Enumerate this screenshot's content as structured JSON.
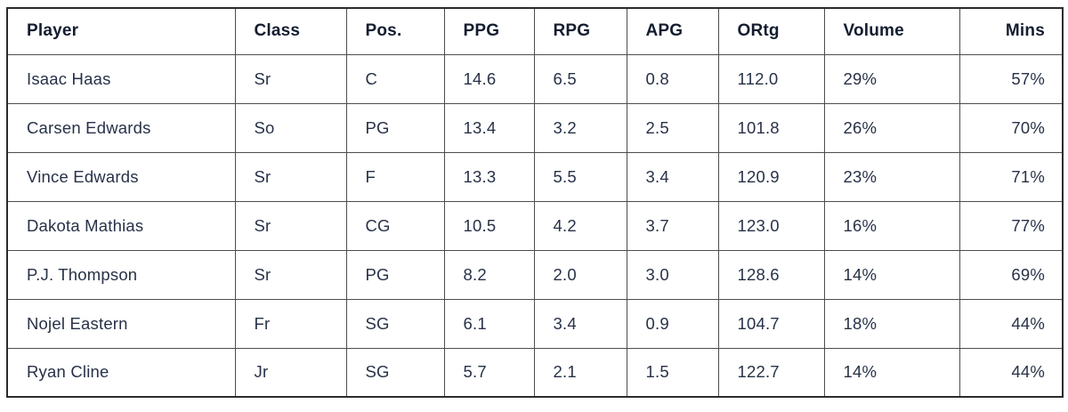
{
  "chart_data": {
    "type": "table",
    "title": "",
    "columns": [
      {
        "label": "Player",
        "align": "left"
      },
      {
        "label": "Class",
        "align": "left"
      },
      {
        "label": "Pos.",
        "align": "left"
      },
      {
        "label": "PPG",
        "align": "left"
      },
      {
        "label": "RPG",
        "align": "left"
      },
      {
        "label": "APG",
        "align": "left"
      },
      {
        "label": "ORtg",
        "align": "left"
      },
      {
        "label": "Volume",
        "align": "left"
      },
      {
        "label": "Mins",
        "align": "right"
      }
    ],
    "rows": [
      [
        "Isaac Haas",
        "Sr",
        "C",
        "14.6",
        "6.5",
        "0.8",
        "112.0",
        "29%",
        "57%"
      ],
      [
        "Carsen Edwards",
        "So",
        "PG",
        "13.4",
        "3.2",
        "2.5",
        "101.8",
        "26%",
        "70%"
      ],
      [
        "Vince Edwards",
        "Sr",
        "F",
        "13.3",
        "5.5",
        "3.4",
        "120.9",
        "23%",
        "71%"
      ],
      [
        "Dakota Mathias",
        "Sr",
        "CG",
        "10.5",
        "4.2",
        "3.7",
        "123.0",
        "16%",
        "77%"
      ],
      [
        "P.J. Thompson",
        "Sr",
        "PG",
        "8.2",
        "2.0",
        "3.0",
        "128.6",
        "14%",
        "69%"
      ],
      [
        "Nojel Eastern",
        "Fr",
        "SG",
        "6.1",
        "3.4",
        "0.9",
        "104.7",
        "18%",
        "44%"
      ],
      [
        "Ryan Cline",
        "Jr",
        "SG",
        "5.7",
        "2.1",
        "1.5",
        "122.7",
        "14%",
        "44%"
      ]
    ]
  },
  "colors": {
    "header_text": "#141d30",
    "body_text": "#273147",
    "border_inner": "#4d4d4d",
    "border_outer": "#2b2b2b",
    "background": "#ffffff"
  }
}
